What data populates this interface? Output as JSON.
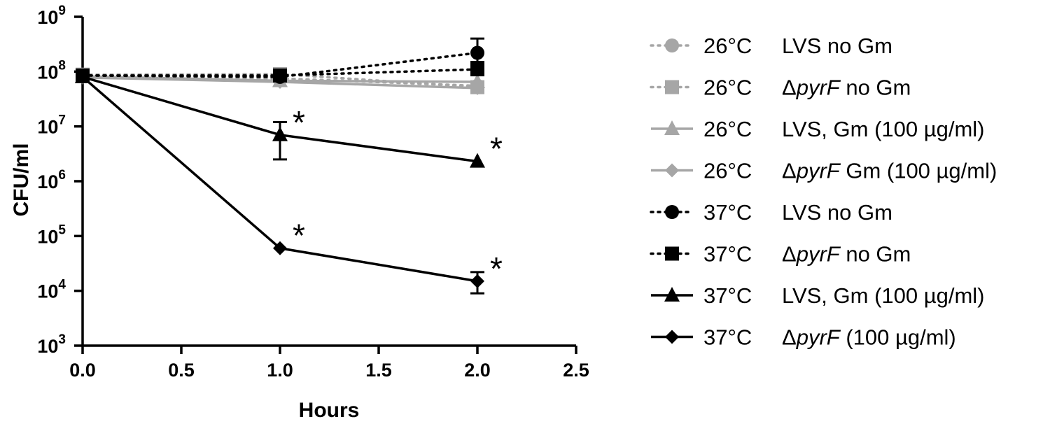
{
  "chart_data": {
    "type": "line",
    "xlabel": "Hours",
    "ylabel": "CFU/ml",
    "xlim": [
      0,
      2.5
    ],
    "ylim": [
      1000,
      1000000000
    ],
    "yscale": "log",
    "x_ticks": [
      "0.0",
      "0.5",
      "1.0",
      "1.5",
      "2.0",
      "2.5"
    ],
    "y_ticks": [
      {
        "base": "10",
        "exp": "3"
      },
      {
        "base": "10",
        "exp": "4"
      },
      {
        "base": "10",
        "exp": "5"
      },
      {
        "base": "10",
        "exp": "6"
      },
      {
        "base": "10",
        "exp": "7"
      },
      {
        "base": "10",
        "exp": "8"
      },
      {
        "base": "10",
        "exp": "9"
      }
    ],
    "legend_position": "right",
    "series": [
      {
        "name": "26°C  LVS no Gm",
        "temp": "26°C",
        "label_parts": [
          {
            "t": "LVS no Gm"
          }
        ],
        "color": "#a6a6a6",
        "marker": "circle",
        "dash": "dotted",
        "x": [
          0,
          1,
          2
        ],
        "y": [
          85000000,
          75000000,
          55000000
        ],
        "err": [
          null,
          null,
          null
        ]
      },
      {
        "name": "26°C  ΔpyrF no Gm",
        "temp": "26°C",
        "label_parts": [
          {
            "t": "Δ"
          },
          {
            "t": "pyrF",
            "i": true
          },
          {
            "t": " no Gm"
          }
        ],
        "color": "#a6a6a6",
        "marker": "square",
        "dash": "dotted",
        "x": [
          0,
          1,
          2
        ],
        "y": [
          88000000,
          90000000,
          52000000
        ],
        "err": [
          null,
          null,
          null
        ]
      },
      {
        "name": "26°C  LVS, Gm (100 µg/ml)",
        "temp": "26°C",
        "label_parts": [
          {
            "t": "LVS, Gm (100 µg/ml)"
          }
        ],
        "color": "#a6a6a6",
        "marker": "triangle",
        "dash": "solid",
        "x": [
          0,
          1,
          2
        ],
        "y": [
          82000000,
          68000000,
          65000000
        ],
        "err": [
          null,
          null,
          null
        ]
      },
      {
        "name": "26°C  ΔpyrF Gm (100 µg/ml)",
        "temp": "26°C",
        "label_parts": [
          {
            "t": "Δ"
          },
          {
            "t": "pyrF",
            "i": true
          },
          {
            "t": " Gm (100 µg/ml)"
          }
        ],
        "color": "#a6a6a6",
        "marker": "diamond",
        "dash": "solid",
        "x": [
          0,
          1,
          2
        ],
        "y": [
          78000000,
          65000000,
          50000000
        ],
        "err": [
          null,
          null,
          null
        ]
      },
      {
        "name": "37°C  LVS no Gm",
        "temp": "37°C",
        "label_parts": [
          {
            "t": "LVS no Gm"
          }
        ],
        "color": "#000000",
        "marker": "circle",
        "dash": "dotted",
        "x": [
          0,
          1,
          2
        ],
        "y": [
          85000000,
          80000000,
          220000000
        ],
        "err": [
          null,
          null,
          [
            150000000,
            400000000
          ]
        ]
      },
      {
        "name": "37°C  ΔpyrF no Gm",
        "temp": "37°C",
        "label_parts": [
          {
            "t": "Δ"
          },
          {
            "t": "pyrF",
            "i": true
          },
          {
            "t": " no Gm"
          }
        ],
        "color": "#000000",
        "marker": "square",
        "dash": "dotted",
        "x": [
          0,
          1,
          2
        ],
        "y": [
          85000000,
          85000000,
          110000000
        ],
        "err": [
          null,
          null,
          null
        ]
      },
      {
        "name": "37°C  LVS, Gm (100 µg/ml)",
        "temp": "37°C",
        "label_parts": [
          {
            "t": "LVS, Gm (100 µg/ml)"
          }
        ],
        "color": "#000000",
        "marker": "triangle",
        "dash": "solid",
        "x": [
          0,
          1,
          2
        ],
        "y": [
          80000000,
          7000000,
          2300000
        ],
        "err": [
          null,
          [
            2500000,
            12000000
          ],
          null
        ]
      },
      {
        "name": "37°C  ΔpyrF (100 µg/ml)",
        "temp": "37°C",
        "label_parts": [
          {
            "t": "Δ"
          },
          {
            "t": "pyrF",
            "i": true
          },
          {
            "t": " (100 µg/ml)"
          }
        ],
        "color": "#000000",
        "marker": "diamond",
        "dash": "solid",
        "x": [
          0,
          1,
          2
        ],
        "y": [
          80000000,
          60000,
          15000
        ],
        "err": [
          null,
          null,
          [
            9000,
            22000
          ]
        ]
      }
    ],
    "annotations": [
      {
        "text": "*",
        "x": 1,
        "y": 7000000
      },
      {
        "text": "*",
        "x": 2,
        "y": 2300000
      },
      {
        "text": "*",
        "x": 1,
        "y": 60000
      },
      {
        "text": "*",
        "x": 2,
        "y": 15000
      }
    ]
  }
}
